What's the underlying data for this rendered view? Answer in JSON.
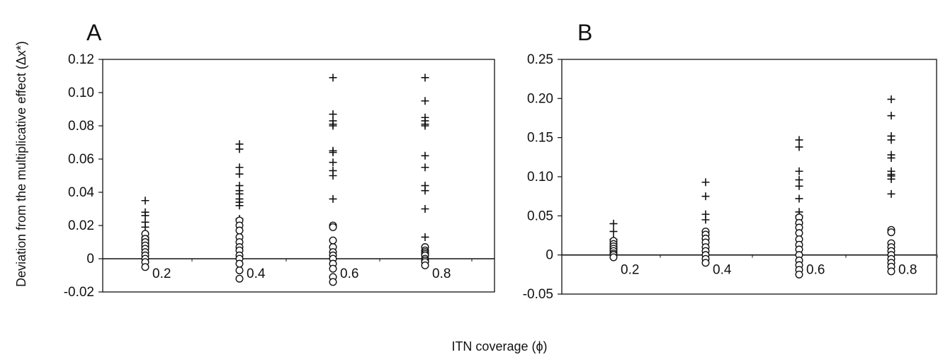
{
  "figure": {
    "ylabel": "Deviation from the multiplicative effect (Δx*)",
    "xlabel": "ITN coverage (ϕ)"
  },
  "chart_data": [
    {
      "type": "scatter",
      "panel": "A",
      "ylim": [
        -0.02,
        0.12
      ],
      "yticks": [
        -0.02,
        0,
        0.02,
        0.04,
        0.06,
        0.08,
        0.1,
        0.12
      ],
      "ytick_labels": [
        "-0.02",
        "0",
        "0.02",
        "0.04",
        "0.06",
        "0.08",
        "0.10",
        "0.12"
      ],
      "categories": [
        "0.2",
        "0.4",
        "0.6",
        "0.8"
      ],
      "grid": false,
      "series": [
        {
          "marker": "plus",
          "values": [
            [
              0.035,
              0.028,
              0.026,
              0.022,
              0.019,
              0.015,
              0.013,
              0.011,
              0.009,
              0.007
            ],
            [
              0.069,
              0.066,
              0.055,
              0.051,
              0.044,
              0.041,
              0.039,
              0.036,
              0.034,
              0.032,
              0.024
            ],
            [
              0.109,
              0.087,
              0.083,
              0.081,
              0.08,
              0.065,
              0.064,
              0.058,
              0.053,
              0.05,
              0.036
            ],
            [
              0.109,
              0.095,
              0.085,
              0.083,
              0.081,
              0.08,
              0.062,
              0.055,
              0.044,
              0.041,
              0.03,
              0.013
            ]
          ]
        },
        {
          "marker": "circle",
          "values": [
            [
              0.015,
              0.012,
              0.01,
              0.008,
              0.006,
              0.004,
              0.002,
              0.0,
              -0.002,
              -0.005
            ],
            [
              0.023,
              0.02,
              0.017,
              0.013,
              0.01,
              0.007,
              0.005,
              0.002,
              0.0,
              -0.003,
              -0.007,
              -0.012
            ],
            [
              0.02,
              0.019,
              0.011,
              0.007,
              0.004,
              0.002,
              0.0,
              -0.003,
              -0.006,
              -0.011,
              -0.014
            ],
            [
              0.007,
              0.005,
              0.004,
              0.003,
              0.002,
              0.0,
              -0.001,
              -0.002,
              -0.004
            ]
          ]
        }
      ]
    },
    {
      "type": "scatter",
      "panel": "B",
      "ylim": [
        -0.05,
        0.25
      ],
      "yticks": [
        -0.05,
        0,
        0.05,
        0.1,
        0.15,
        0.2,
        0.25
      ],
      "ytick_labels": [
        "-0.05",
        "0",
        "0.05",
        "0.10",
        "0.15",
        "0.20",
        "0.25"
      ],
      "categories": [
        "0.2",
        "0.4",
        "0.6",
        "0.8"
      ],
      "grid": false,
      "series": [
        {
          "marker": "plus",
          "values": [
            [
              0.04,
              0.03,
              0.02,
              0.015,
              0.01,
              0.008,
              0.005
            ],
            [
              0.093,
              0.075,
              0.052,
              0.045,
              0.03,
              0.02
            ],
            [
              0.147,
              0.138,
              0.107,
              0.096,
              0.088,
              0.072,
              0.055,
              0.05,
              0.04
            ],
            [
              0.199,
              0.178,
              0.152,
              0.147,
              0.128,
              0.124,
              0.107,
              0.103,
              0.101,
              0.097,
              0.078
            ]
          ]
        },
        {
          "marker": "circle",
          "values": [
            [
              0.018,
              0.014,
              0.011,
              0.008,
              0.005,
              0.002,
              0.0,
              -0.003
            ],
            [
              0.03,
              0.026,
              0.021,
              0.016,
              0.01,
              0.005,
              0.0,
              -0.005,
              -0.01
            ],
            [
              0.048,
              0.041,
              0.035,
              0.028,
              0.02,
              0.013,
              0.007,
              0.0,
              -0.007,
              -0.013,
              -0.019,
              -0.025
            ],
            [
              0.032,
              0.029,
              0.015,
              0.01,
              0.005,
              0.0,
              -0.005,
              -0.01,
              -0.015,
              -0.021
            ]
          ]
        }
      ]
    }
  ]
}
